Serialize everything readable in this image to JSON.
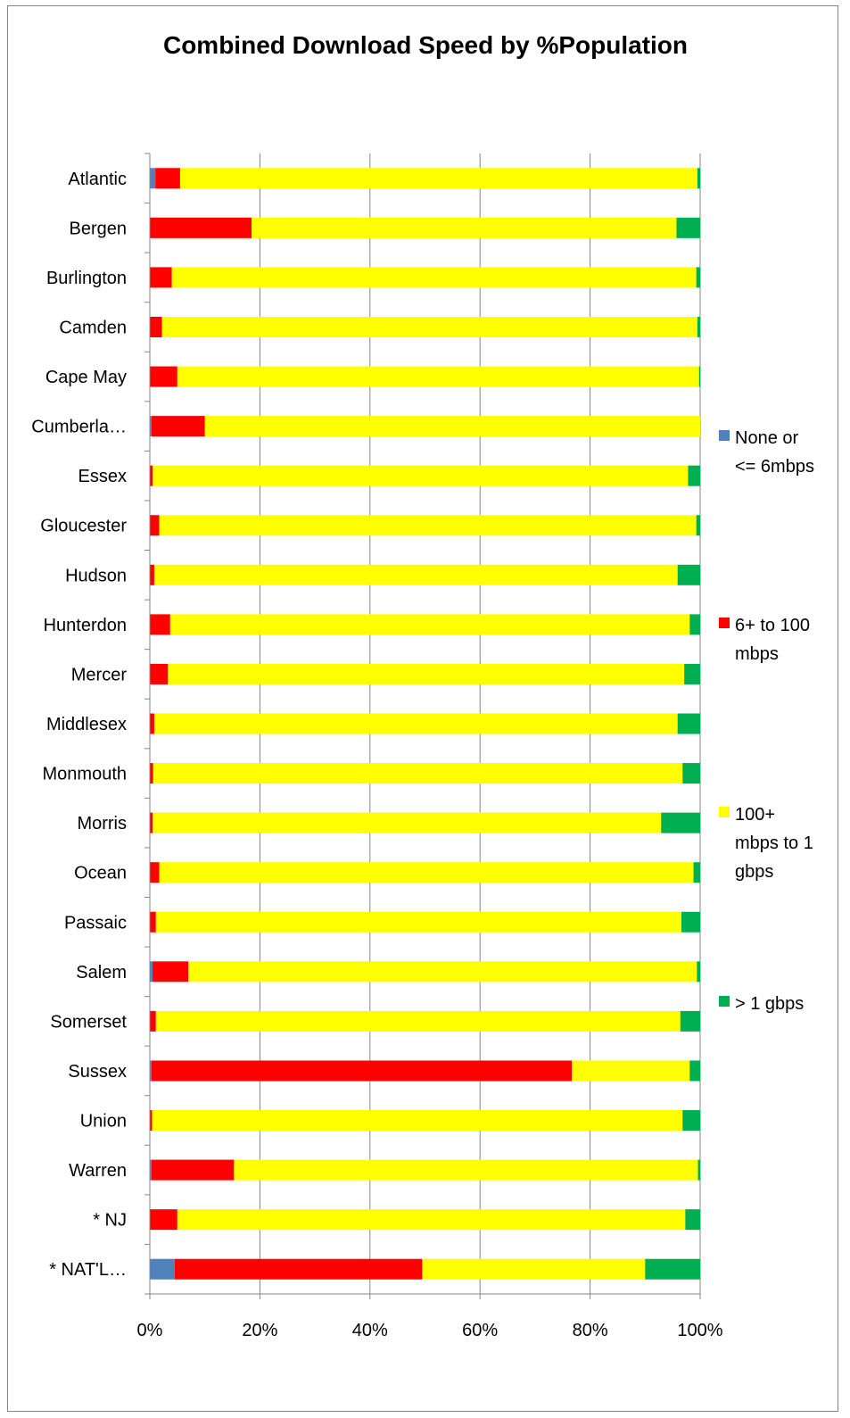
{
  "chart_data": {
    "type": "bar",
    "orientation": "horizontal",
    "stacked": "percent",
    "title": "Combined Download Speed by %Population",
    "categories": [
      "Atlantic",
      "Bergen",
      "Burlington",
      "Camden",
      "Cape May",
      "Cumberla…",
      "Essex",
      "Gloucester",
      "Hudson",
      "Hunterdon",
      "Mercer",
      "Middlesex",
      "Monmouth",
      "Morris",
      "Ocean",
      "Passaic",
      "Salem",
      "Somerset",
      "Sussex",
      "Union",
      "Warren",
      "* NJ",
      "* NAT'L…"
    ],
    "series": [
      {
        "name": "None or <= 6mbps",
        "legend_lines": [
          "None or",
          "<= 6mbps"
        ],
        "color": "#4f81bd",
        "values": [
          1.0,
          0,
          0,
          0,
          0,
          0.3,
          0,
          0,
          0,
          0,
          0,
          0,
          0,
          0,
          0,
          0,
          0.5,
          0,
          0.3,
          0,
          0.3,
          0,
          4.5
        ]
      },
      {
        "name": "6+ to 100 mbps",
        "legend_lines": [
          "6+ to 100",
          "mbps"
        ],
        "color": "#ff0000",
        "values": [
          4.5,
          18.5,
          4.0,
          2.2,
          5.0,
          9.7,
          0.5,
          1.7,
          0.8,
          3.7,
          3.3,
          0.8,
          0.6,
          0.5,
          1.7,
          1.1,
          6.5,
          1.1,
          76.4,
          0.4,
          15.0,
          5.0,
          45.0
        ]
      },
      {
        "name": "100+ mbps to 1 gbps",
        "legend_lines": [
          "100+",
          "mbps to 1",
          "gbps"
        ],
        "color": "#ffff00",
        "values": [
          94.0,
          77.2,
          95.3,
          97.3,
          94.8,
          90.0,
          97.3,
          97.6,
          95.1,
          94.4,
          93.8,
          95.1,
          96.2,
          92.4,
          97.1,
          95.5,
          92.4,
          95.3,
          21.4,
          96.4,
          84.3,
          92.3,
          40.5
        ]
      },
      {
        "name": "> 1 gbps",
        "legend_lines": [
          "> 1 gbps"
        ],
        "color": "#00b050",
        "values": [
          0.5,
          4.3,
          0.7,
          0.5,
          0.2,
          0,
          2.2,
          0.7,
          4.1,
          1.9,
          2.9,
          4.1,
          3.2,
          7.1,
          1.2,
          3.4,
          0.6,
          3.6,
          1.9,
          3.2,
          0.4,
          2.7,
          10.0
        ]
      }
    ],
    "xaxis": {
      "min": 0,
      "max": 100,
      "ticks": [
        "0%",
        "20%",
        "40%",
        "60%",
        "80%",
        "100%"
      ]
    },
    "grid": true,
    "legend_position": "right"
  }
}
